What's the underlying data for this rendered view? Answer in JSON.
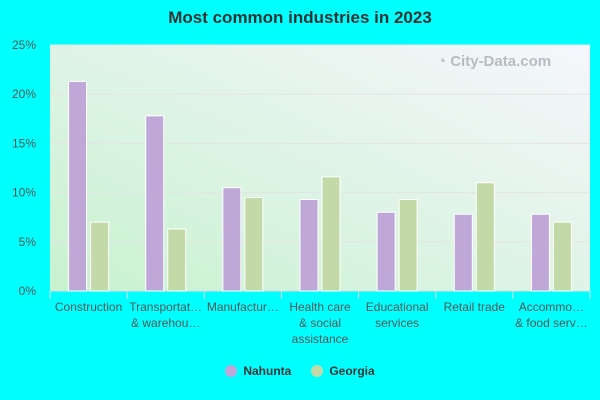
{
  "chart_data": {
    "type": "bar",
    "title": "Most common industries in 2023",
    "categories": [
      [
        "Construction"
      ],
      [
        "Transportat…",
        "& warehou…"
      ],
      [
        "Manufactur…"
      ],
      [
        "Health care",
        "& social",
        "assistance"
      ],
      [
        "Educational",
        "services"
      ],
      [
        "Retail trade"
      ],
      [
        "Accommo…",
        "& food serv…"
      ]
    ],
    "series": [
      {
        "name": "Nahunta",
        "color": "#bfa8d8",
        "values": [
          21.3,
          17.8,
          10.5,
          9.3,
          8.0,
          7.8,
          7.8
        ]
      },
      {
        "name": "Georgia",
        "color": "#c4d9a8",
        "values": [
          7.0,
          6.3,
          9.5,
          11.6,
          9.3,
          11.0,
          7.0
        ]
      }
    ],
    "yticks": [
      "0%",
      "5%",
      "10%",
      "15%",
      "20%",
      "25%"
    ],
    "ylim": [
      0,
      25
    ],
    "grid": true,
    "legend": "bottom",
    "watermark": "City-Data.com"
  }
}
